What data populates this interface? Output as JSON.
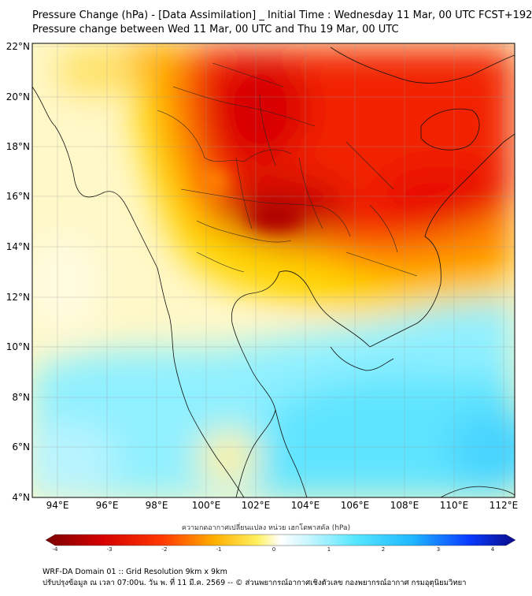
{
  "header": {
    "title_line1": "Pressure Change (hPa) - [Data Assimilation] _ Initial Time : Wednesday 11 Mar, 00 UTC FCST+192",
    "title_line2": "Pressure change between Wed 11 Mar, 00 UTC and Thu 19 Mar, 00 UTC"
  },
  "map": {
    "lat_labels": [
      "22°N",
      "20°N",
      "18°N",
      "16°N",
      "14°N",
      "12°N",
      "10°N",
      "8°N",
      "6°N",
      "4°N"
    ],
    "lon_labels": [
      "94°E",
      "96°E",
      "98°E",
      "100°E",
      "102°E",
      "104°E",
      "106°E",
      "108°E",
      "110°E",
      "112°E"
    ],
    "lat_range": [
      4,
      22.2
    ],
    "lon_range": [
      93,
      112.5
    ]
  },
  "colorbar": {
    "title": "ความกดอากาศเปลี่ยนแปลง หน่วย เฮกโตพาสคัล (hPa)",
    "ticks": [
      "-4",
      "-3",
      "-2",
      "-1",
      "0",
      "1",
      "2",
      "3",
      "4"
    ],
    "range": [
      -4,
      4
    ]
  },
  "footer": {
    "line1": "WRF-DA Domain 01 :: Grid Resolution 9km x 9km",
    "line2": "ปรับปรุงข้อมูล ณ เวลา 07:00น. วัน พ. ที่ 11 มี.ค. 2569 -- © ส่วนพยากรณ์อากาศเชิงตัวเลข กองพยากรณ์อากาศ กรมอุตุนิยมวิทยา"
  }
}
